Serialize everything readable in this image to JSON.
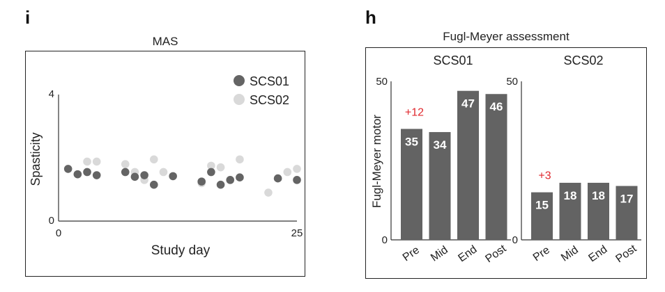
{
  "panels": {
    "left": {
      "letter": "i",
      "title": "MAS"
    },
    "right": {
      "letter": "h",
      "title": "Fugl-Meyer assessment"
    }
  },
  "chart_data": [
    {
      "type": "scatter",
      "title": "MAS",
      "xlabel": "Study day",
      "ylabel": "Spasticity",
      "xlim": [
        0,
        25
      ],
      "ylim": [
        0,
        4
      ],
      "x_ticks": [
        "0",
        "25"
      ],
      "y_ticks": [
        "0",
        "4"
      ],
      "legend_position": "top-right",
      "series": [
        {
          "name": "SCS01",
          "color": "#646464",
          "points": [
            [
              1,
              1.65
            ],
            [
              2,
              1.48
            ],
            [
              3,
              1.55
            ],
            [
              4,
              1.45
            ],
            [
              7,
              1.55
            ],
            [
              8,
              1.4
            ],
            [
              9,
              1.45
            ],
            [
              10,
              1.15
            ],
            [
              12,
              1.42
            ],
            [
              15,
              1.25
            ],
            [
              16,
              1.55
            ],
            [
              17,
              1.15
            ],
            [
              18,
              1.3
            ],
            [
              19,
              1.38
            ],
            [
              23,
              1.35
            ],
            [
              25,
              1.3
            ]
          ]
        },
        {
          "name": "SCS02",
          "color": "#d9d9d9",
          "points": [
            [
              3,
              1.88
            ],
            [
              4,
              1.88
            ],
            [
              7,
              1.8
            ],
            [
              8,
              1.55
            ],
            [
              9,
              1.3
            ],
            [
              10,
              1.95
            ],
            [
              11,
              1.55
            ],
            [
              15,
              1.2
            ],
            [
              16,
              1.75
            ],
            [
              17,
              1.7
            ],
            [
              19,
              1.95
            ],
            [
              22,
              0.9
            ],
            [
              23,
              1.35
            ],
            [
              24,
              1.55
            ],
            [
              25,
              1.65
            ]
          ]
        }
      ]
    },
    {
      "type": "bar",
      "title": "Fugl-Meyer assessment",
      "ylabel": "Fugl-Meyer motor",
      "ylim": [
        0,
        50
      ],
      "y_ticks": [
        "0",
        "50"
      ],
      "bar_color": "#636363",
      "groups": [
        {
          "name": "SCS01",
          "categories": [
            "Pre",
            "Mid",
            "End",
            "Post"
          ],
          "values": [
            35,
            34,
            47,
            46
          ],
          "annotation": "+12"
        },
        {
          "name": "SCS02",
          "categories": [
            "Pre",
            "Mid",
            "End",
            "Post"
          ],
          "values": [
            15,
            18,
            18,
            17
          ],
          "annotation": "+3"
        }
      ],
      "annotation_color": "#e0282e"
    }
  ]
}
